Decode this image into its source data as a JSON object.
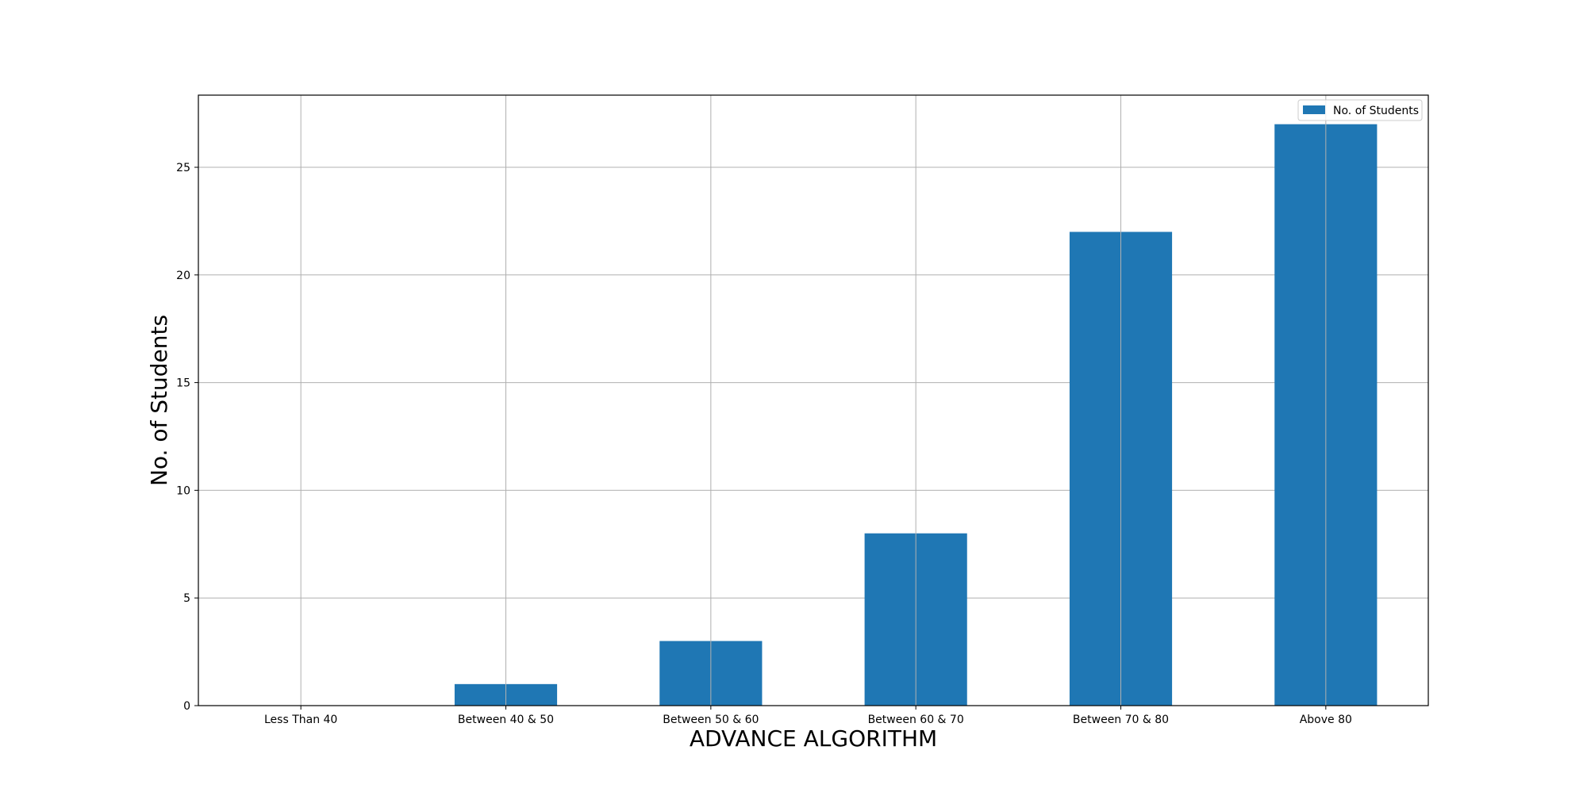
{
  "chart_data": {
    "type": "bar",
    "title": "",
    "xlabel": "ADVANCE ALGORITHM",
    "ylabel": "No. of Students",
    "categories": [
      "Less Than 40",
      "Between 40 & 50",
      "Between 50 & 60",
      "Between 60 & 70",
      "Between 70 & 80",
      "Above 80"
    ],
    "series": [
      {
        "name": "No. of Students",
        "values": [
          0,
          1,
          3,
          8,
          22,
          27
        ],
        "color": "#1f77b4"
      }
    ],
    "ylim": [
      0,
      28.35
    ],
    "yticks": [
      0,
      5,
      10,
      15,
      20,
      25
    ],
    "grid": true,
    "legend_position": "top-right"
  }
}
